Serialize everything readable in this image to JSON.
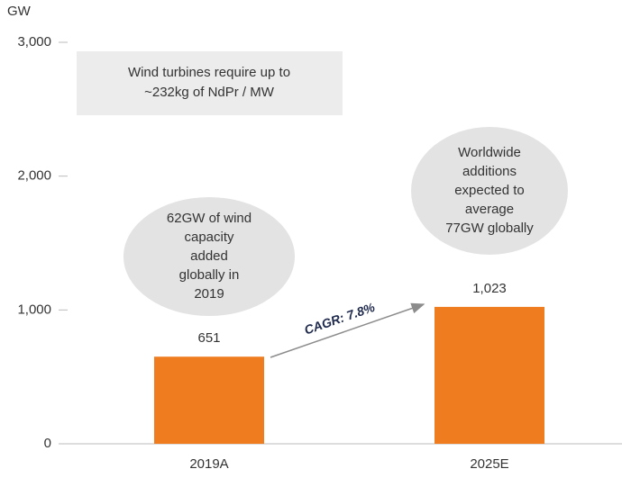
{
  "chart_data": {
    "type": "bar",
    "y_axis_label": "GW",
    "categories": [
      "2019A",
      "2025E"
    ],
    "values": [
      651,
      1023
    ],
    "value_labels": [
      "651",
      "1,023"
    ],
    "color": "#f07c20",
    "ylim": [
      0,
      3000
    ],
    "yticks": [
      0,
      {
        "value": 1000,
        "label": "1,000"
      },
      {
        "value": 2000,
        "label": "2,000"
      },
      {
        "value": 3000,
        "label": "3,000"
      }
    ],
    "annotations": [
      {
        "lines": [
          "Wind turbines require up to",
          "~232kg of NdPr / MW"
        ]
      },
      {
        "lines": [
          "62GW of wind",
          "capacity",
          "added",
          "globally in",
          "2019"
        ]
      },
      {
        "lines": [
          "Worldwide",
          "additions",
          "expected to",
          "average",
          "77GW globally"
        ]
      },
      {
        "lines": [
          "CAGR: 7.8%"
        ]
      }
    ]
  }
}
